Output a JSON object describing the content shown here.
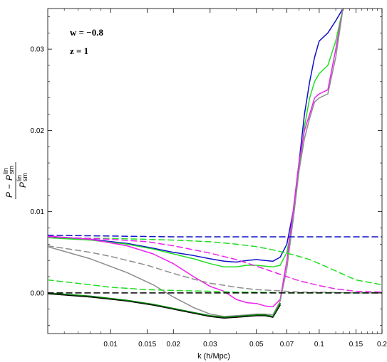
{
  "chart_data": {
    "type": "line",
    "xlabel": "k (h/Mpc)",
    "ylabel_parts": {
      "P": "P",
      "minus": "−",
      "sup": "lin",
      "sub": "sm"
    },
    "x_scale": "log",
    "xlim": [
      0.005,
      0.2
    ],
    "ylim": [
      -0.005,
      0.035
    ],
    "x_ticks": [
      0.01,
      0.015,
      0.02,
      0.03,
      0.05,
      0.07,
      0.1,
      0.15,
      0.2
    ],
    "x_tick_labels": [
      "0.01",
      "0.015",
      "0.02",
      "0.03",
      "0.05",
      "0.07",
      "0.1",
      "0.15",
      "0.2"
    ],
    "y_ticks": [
      0.0,
      0.01,
      0.02,
      0.03
    ],
    "y_tick_labels": [
      "0.00",
      "0.01",
      "0.02",
      "0.03"
    ],
    "annotations": [
      "w = −0.8",
      "z = 1"
    ],
    "grid": false,
    "series": [
      {
        "color": "#1010c8",
        "dash": false,
        "x": [
          0.005,
          0.008,
          0.012,
          0.016,
          0.02,
          0.025,
          0.03,
          0.035,
          0.04,
          0.045,
          0.05,
          0.055,
          0.06,
          0.065,
          0.07,
          0.075,
          0.08,
          0.085,
          0.09,
          0.095,
          0.1,
          0.11,
          0.12,
          0.13
        ],
        "y": [
          0.0069,
          0.0066,
          0.0061,
          0.0055,
          0.005,
          0.0046,
          0.0042,
          0.0039,
          0.0038,
          0.004,
          0.0041,
          0.004,
          0.0039,
          0.0044,
          0.006,
          0.01,
          0.016,
          0.022,
          0.026,
          0.029,
          0.031,
          0.032,
          0.0335,
          0.035
        ]
      },
      {
        "color": "#22dd22",
        "dash": false,
        "x": [
          0.005,
          0.008,
          0.012,
          0.016,
          0.02,
          0.025,
          0.03,
          0.035,
          0.04,
          0.045,
          0.05,
          0.055,
          0.06,
          0.065,
          0.07,
          0.075,
          0.08,
          0.085,
          0.09,
          0.095,
          0.1,
          0.11,
          0.12,
          0.13
        ],
        "y": [
          0.0068,
          0.0065,
          0.006,
          0.0054,
          0.0048,
          0.0042,
          0.0036,
          0.0032,
          0.0032,
          0.0034,
          0.0034,
          0.0033,
          0.0032,
          0.0034,
          0.005,
          0.009,
          0.015,
          0.0205,
          0.024,
          0.026,
          0.027,
          0.028,
          0.031,
          0.035
        ]
      },
      {
        "color": "#ee22ee",
        "dash": false,
        "x": [
          0.005,
          0.008,
          0.012,
          0.016,
          0.02,
          0.025,
          0.03,
          0.035,
          0.04,
          0.045,
          0.05,
          0.055,
          0.06,
          0.065,
          0.07,
          0.075,
          0.08,
          0.085,
          0.09,
          0.095,
          0.1,
          0.11,
          0.12,
          0.13
        ],
        "y": [
          0.007,
          0.0066,
          0.0058,
          0.0048,
          0.0036,
          0.002,
          0.0008,
          0.0002,
          -0.0008,
          -0.0012,
          -0.0013,
          -0.0016,
          -0.0017,
          -0.0008,
          0.004,
          0.01,
          0.016,
          0.02,
          0.022,
          0.024,
          0.0245,
          0.025,
          0.03,
          0.035
        ]
      },
      {
        "color": "#8c8c8c",
        "dash": false,
        "x": [
          0.005,
          0.008,
          0.012,
          0.016,
          0.02,
          0.025,
          0.03,
          0.035,
          0.04,
          0.045,
          0.05,
          0.055,
          0.06,
          0.065,
          0.07,
          0.075,
          0.08,
          0.085,
          0.09,
          0.095,
          0.1,
          0.11,
          0.12,
          0.13
        ],
        "y": [
          0.0057,
          0.0042,
          0.0025,
          0.001,
          -0.0005,
          -0.0018,
          -0.0026,
          -0.0029,
          -0.0028,
          -0.0027,
          -0.0026,
          -0.0026,
          -0.0027,
          -0.001,
          0.003,
          0.009,
          0.015,
          0.019,
          0.0215,
          0.0235,
          0.024,
          0.0245,
          0.029,
          0.035
        ]
      },
      {
        "color": "#000000",
        "dash": false,
        "x": [
          0.005,
          0.008,
          0.012,
          0.016,
          0.02,
          0.025,
          0.03,
          0.035,
          0.04,
          0.045,
          0.05,
          0.055,
          0.06,
          0.065
        ],
        "y": [
          -0.0001,
          -0.0005,
          -0.001,
          -0.0015,
          -0.002,
          -0.0025,
          -0.0029,
          -0.0031,
          -0.003,
          -0.0029,
          -0.0028,
          -0.0028,
          -0.003,
          -0.0015
        ]
      },
      {
        "color": "#007a00",
        "dash": false,
        "x": [
          0.005,
          0.008,
          0.012,
          0.016,
          0.02,
          0.025,
          0.03,
          0.035,
          0.04,
          0.045,
          0.05,
          0.055,
          0.06,
          0.065
        ],
        "y": [
          0.0,
          -0.0004,
          -0.0009,
          -0.0014,
          -0.0019,
          -0.0024,
          -0.0028,
          -0.003,
          -0.0029,
          -0.0028,
          -0.0027,
          -0.0027,
          -0.0029,
          -0.0013
        ]
      },
      {
        "color": "#1010c8",
        "dash": true,
        "x": [
          0.005,
          0.01,
          0.02,
          0.05,
          0.1,
          0.2
        ],
        "y": [
          0.0071,
          0.007,
          0.0069,
          0.0069,
          0.0069,
          0.0069
        ]
      },
      {
        "color": "#22dd22",
        "dash": true,
        "x": [
          0.005,
          0.01,
          0.015,
          0.02,
          0.03,
          0.04,
          0.05,
          0.06,
          0.07,
          0.08,
          0.09,
          0.1,
          0.12,
          0.15,
          0.2
        ],
        "y": [
          0.0068,
          0.0067,
          0.0066,
          0.0065,
          0.0063,
          0.006,
          0.0057,
          0.0053,
          0.0049,
          0.0045,
          0.0041,
          0.0036,
          0.0027,
          0.0016,
          0.001
        ]
      },
      {
        "color": "#ee22ee",
        "dash": true,
        "x": [
          0.005,
          0.01,
          0.015,
          0.02,
          0.03,
          0.04,
          0.05,
          0.06,
          0.07,
          0.08,
          0.1,
          0.12,
          0.15,
          0.2
        ],
        "y": [
          0.0069,
          0.0066,
          0.0063,
          0.0058,
          0.0049,
          0.0041,
          0.0033,
          0.0026,
          0.002,
          0.0015,
          0.0009,
          0.0005,
          0.0002,
          0.0001
        ]
      },
      {
        "color": "#8c8c8c",
        "dash": true,
        "x": [
          0.005,
          0.008,
          0.01,
          0.015,
          0.02,
          0.025,
          0.03,
          0.04,
          0.05,
          0.06,
          0.07,
          0.08,
          0.1,
          0.15,
          0.2
        ],
        "y": [
          0.0058,
          0.005,
          0.0045,
          0.0034,
          0.0024,
          0.0017,
          0.0012,
          0.0007,
          0.0004,
          0.0003,
          0.0002,
          0.0001,
          0.0001,
          0.0,
          0.0
        ]
      },
      {
        "color": "#22dd22",
        "dash": true,
        "x": [
          0.005,
          0.008,
          0.01,
          0.015,
          0.02,
          0.03,
          0.04,
          0.05,
          0.07,
          0.1,
          0.2
        ],
        "y": [
          0.0016,
          0.001,
          0.0007,
          0.0004,
          0.0003,
          0.0002,
          0.0001,
          0.0001,
          0.0,
          0.0,
          0.0
        ]
      },
      {
        "color": "#000000",
        "dash": true,
        "x": [
          0.005,
          0.01,
          0.02,
          0.05,
          0.1,
          0.2
        ],
        "y": [
          0.0,
          0.0,
          0.0,
          0.0,
          0.0,
          0.0
        ]
      }
    ]
  }
}
